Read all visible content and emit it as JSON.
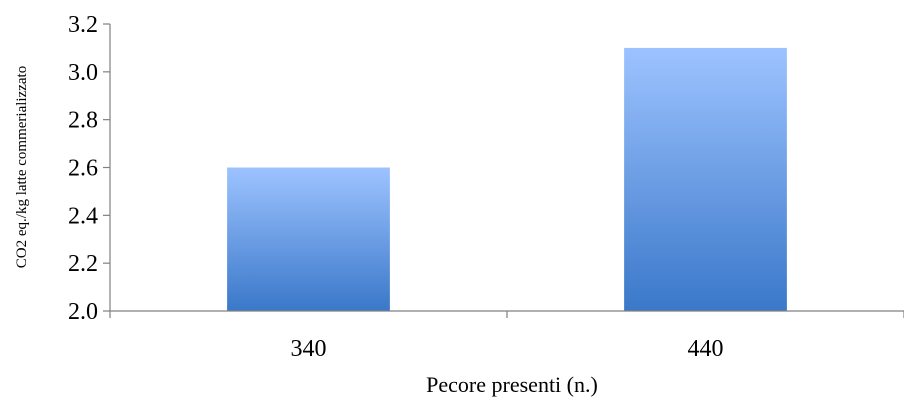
{
  "chart_data": {
    "type": "bar",
    "categories": [
      "340",
      "440"
    ],
    "values": [
      2.6,
      3.1
    ],
    "title": "",
    "xlabel": "Pecore presenti (n.)",
    "ylabel": "CO2 eq./kg latte commerializzato",
    "ylim": [
      2.0,
      3.2
    ],
    "yticks": [
      "2.0",
      "2.2",
      "2.4",
      "2.6",
      "2.8",
      "3.0",
      "3.2"
    ],
    "grid": false,
    "legend": "none",
    "colors": {
      "bar_top": "#9dc3ff",
      "bar_bottom": "#3a78c9",
      "axis": "#808080"
    }
  }
}
